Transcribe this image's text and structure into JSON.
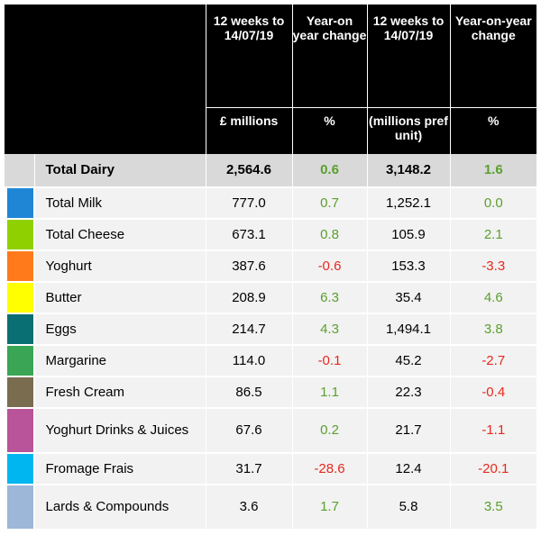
{
  "header": {
    "col_value_period": "12 weeks to 14/07/19",
    "col_value_change": "Year-on year change",
    "col_volume_period": "12 weeks to 14/07/19",
    "col_volume_change": "Year-on-year change",
    "unit_value": "£ millions",
    "unit_value_change": "%",
    "unit_volume": "(millions pref unit)",
    "unit_volume_change": "%"
  },
  "colors": {
    "positive": "#5aa02c",
    "negative": "#e8281e",
    "header_bg": "#000000",
    "total_row_bg": "#d9d9d9",
    "row_bg": "#f2f2f2"
  },
  "rows": [
    {
      "name": "Total Dairy",
      "value": "2,564.6",
      "value_change": "0.6",
      "volume": "3,148.2",
      "volume_change": "1.6",
      "swatch": "#d9d9d9",
      "total": true
    },
    {
      "name": "Total Milk",
      "value": "777.0",
      "value_change": "0.7",
      "volume": "1,252.1",
      "volume_change": "0.0",
      "swatch": "#1f86d6"
    },
    {
      "name": "Total Cheese",
      "value": "673.1",
      "value_change": "0.8",
      "volume": "105.9",
      "volume_change": "2.1",
      "swatch": "#8fd100"
    },
    {
      "name": "Yoghurt",
      "value": "387.6",
      "value_change": "-0.6",
      "volume": "153.3",
      "volume_change": "-3.3",
      "swatch": "#ff7a1a"
    },
    {
      "name": "Butter",
      "value": "208.9",
      "value_change": "6.3",
      "volume": "35.4",
      "volume_change": "4.6",
      "swatch": "#ffff00"
    },
    {
      "name": "Eggs",
      "value": "214.7",
      "value_change": "4.3",
      "volume": "1,494.1",
      "volume_change": "3.8",
      "swatch": "#0a6f73"
    },
    {
      "name": "Margarine",
      "value": "114.0",
      "value_change": "-0.1",
      "volume": "45.2",
      "volume_change": "-2.7",
      "swatch": "#3aa655"
    },
    {
      "name": "Fresh Cream",
      "value": "86.5",
      "value_change": "1.1",
      "volume": "22.3",
      "volume_change": "-0.4",
      "swatch": "#7a6c4f"
    },
    {
      "name": "Yoghurt Drinks & Juices",
      "value": "67.6",
      "value_change": "0.2",
      "volume": "21.7",
      "volume_change": "-1.1",
      "swatch": "#b9549a",
      "tall": true
    },
    {
      "name": "Fromage Frais",
      "value": "31.7",
      "value_change": "-28.6",
      "volume": "12.4",
      "volume_change": "-20.1",
      "swatch": "#00b6f0"
    },
    {
      "name": "Lards & Compounds",
      "value": "3.6",
      "value_change": "1.7",
      "volume": "5.8",
      "volume_change": "3.5",
      "swatch": "#9db7d9",
      "tall": true
    }
  ]
}
